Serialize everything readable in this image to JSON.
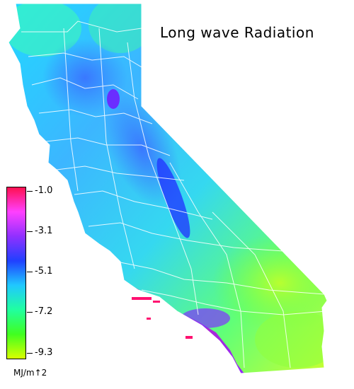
{
  "title": "Long wave Radiation",
  "legend": {
    "unit": "MJ/m↑2",
    "ticks": [
      "-1.0",
      "-3.1",
      "-5.1",
      "-7.2",
      "-9.3"
    ],
    "colors": [
      "#ff1050",
      "#ff40ff",
      "#9030ff",
      "#2040ff",
      "#20c8ff",
      "#20ffa0",
      "#40ff20",
      "#d8ff00"
    ]
  },
  "colors": {
    "background": "#ffffff",
    "county_lines": "#ffffff",
    "islands": "#ff1070"
  }
}
